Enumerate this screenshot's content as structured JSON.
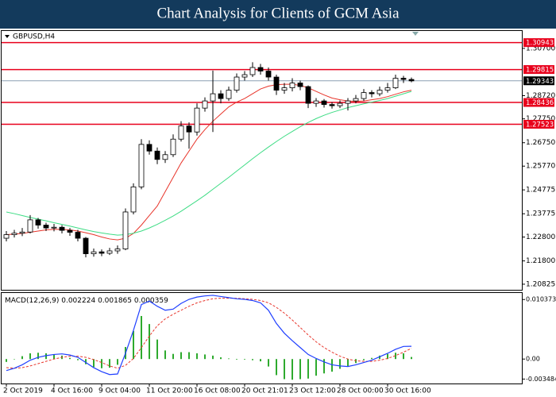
{
  "chart_data": {
    "type": "candlestick",
    "title": "Chart Analysis for Clients of GCM Asia",
    "symbol": "GBPUSD,H4",
    "categories": [
      "2 Oct 2019",
      null,
      null,
      null,
      null,
      null,
      "4 Oct 16:00",
      null,
      null,
      null,
      null,
      null,
      "9 Oct 04:00",
      null,
      null,
      null,
      null,
      null,
      "11 Oct 20:00",
      null,
      null,
      null,
      null,
      null,
      "16 Oct 08:00",
      null,
      null,
      null,
      null,
      null,
      "20 Oct 21:01",
      null,
      null,
      null,
      null,
      null,
      "23 Oct 12:00",
      null,
      null,
      null,
      null,
      null,
      "28 Oct 00:00",
      null,
      null,
      null,
      null,
      null,
      "30 Oct 16:00",
      null,
      null,
      null
    ],
    "open": [
      1.2275,
      1.229,
      1.2296,
      1.2301,
      1.2352,
      1.233,
      1.2318,
      1.2321,
      1.2308,
      1.23,
      1.2275,
      1.221,
      1.2218,
      1.2212,
      1.2222,
      1.223,
      1.2385,
      1.249,
      1.2668,
      1.264,
      1.2605,
      1.2625,
      1.269,
      1.2745,
      1.272,
      1.282,
      1.285,
      1.288,
      1.286,
      1.2895,
      1.295,
      1.296,
      1.299,
      1.2975,
      1.295,
      1.2895,
      1.2905,
      1.2925,
      1.291,
      1.284,
      1.285,
      1.2835,
      1.283,
      1.284,
      1.285,
      1.286,
      1.2885,
      1.288,
      1.2895,
      1.2905,
      1.2945,
      1.294
    ],
    "high": [
      1.2305,
      1.231,
      1.2318,
      1.2372,
      1.236,
      1.234,
      1.2335,
      1.233,
      1.2318,
      1.231,
      1.228,
      1.2232,
      1.2228,
      1.2235,
      1.2245,
      1.24,
      1.2505,
      1.269,
      1.2685,
      1.2655,
      1.264,
      1.271,
      1.2765,
      1.276,
      1.284,
      1.2865,
      1.2977,
      1.2895,
      1.291,
      1.2965,
      1.2975,
      1.3012,
      1.3005,
      1.299,
      1.296,
      1.2925,
      1.2945,
      1.2935,
      1.2915,
      1.2862,
      1.2858,
      1.2845,
      1.2852,
      1.2862,
      1.2875,
      1.29,
      1.2895,
      1.291,
      1.2925,
      1.296,
      1.2955,
      1.2948
    ],
    "low": [
      1.2262,
      1.2278,
      1.2284,
      1.2295,
      1.2315,
      1.2305,
      1.2304,
      1.2295,
      1.2285,
      1.2262,
      1.2195,
      1.2198,
      1.22,
      1.2205,
      1.221,
      1.2225,
      1.2375,
      1.248,
      1.2625,
      1.2585,
      1.259,
      1.2615,
      1.268,
      1.265,
      1.2705,
      1.2805,
      1.272,
      1.284,
      1.285,
      1.2885,
      1.2935,
      1.295,
      1.296,
      1.2935,
      1.2875,
      1.288,
      1.289,
      1.2895,
      1.282,
      1.2825,
      1.2822,
      1.2818,
      1.282,
      1.281,
      1.284,
      1.285,
      1.2865,
      1.287,
      1.2885,
      1.29,
      1.2925,
      1.2928
    ],
    "close": [
      1.229,
      1.2296,
      1.2301,
      1.2352,
      1.233,
      1.2318,
      1.2321,
      1.2308,
      1.23,
      1.2275,
      1.221,
      1.2218,
      1.2212,
      1.2222,
      1.223,
      1.2385,
      1.249,
      1.2668,
      1.264,
      1.2605,
      1.2625,
      1.269,
      1.2745,
      1.272,
      1.282,
      1.285,
      1.288,
      1.286,
      1.2895,
      1.295,
      1.296,
      1.299,
      1.2975,
      1.295,
      1.2895,
      1.2905,
      1.2925,
      1.291,
      1.284,
      1.285,
      1.2835,
      1.283,
      1.284,
      1.285,
      1.286,
      1.2885,
      1.288,
      1.2895,
      1.2905,
      1.2945,
      1.294,
      1.2934
    ],
    "up_color": "#ffffff",
    "down_color": "#000000",
    "overlays": [
      {
        "color": "#e8352b",
        "values": [
          1.229,
          1.2292,
          1.2295,
          1.23,
          1.2305,
          1.231,
          1.2312,
          1.2312,
          1.231,
          1.2305,
          1.2298,
          1.229,
          1.228,
          1.2272,
          1.2268,
          1.2275,
          1.2295,
          1.233,
          1.237,
          1.241,
          1.247,
          1.253,
          1.259,
          1.264,
          1.269,
          1.273,
          1.2765,
          1.2795,
          1.2825,
          1.2845,
          1.286,
          1.288,
          1.29,
          1.2912,
          1.2918,
          1.292,
          1.292,
          1.2915,
          1.2905,
          1.289,
          1.2875,
          1.2862,
          1.2855,
          1.285,
          1.2848,
          1.285,
          1.2855,
          1.286,
          1.2868,
          1.2878,
          1.2888,
          1.2895
        ]
      },
      {
        "color": "#3ddc84",
        "values": [
          1.2385,
          1.2378,
          1.237,
          1.2362,
          1.2355,
          1.2348,
          1.234,
          1.2333,
          1.2326,
          1.2318,
          1.231,
          1.2303,
          1.2297,
          1.2292,
          1.2288,
          1.229,
          1.2296,
          1.2305,
          1.2318,
          1.2333,
          1.235,
          1.2368,
          1.2388,
          1.241,
          1.2432,
          1.2455,
          1.248,
          1.2505,
          1.253,
          1.2556,
          1.2582,
          1.2608,
          1.2633,
          1.2657,
          1.268,
          1.2702,
          1.2722,
          1.2742,
          1.276,
          1.2776,
          1.279,
          1.2802,
          1.2812,
          1.2822,
          1.283,
          1.2838,
          1.2845,
          1.2852,
          1.286,
          1.287,
          1.288,
          1.289
        ]
      }
    ],
    "levels": [
      {
        "value": 1.30943,
        "color": "#e8001c"
      },
      {
        "value": 1.29815,
        "color": "#e8001c"
      },
      {
        "value": 1.28436,
        "color": "#e8001c"
      },
      {
        "value": 1.27523,
        "color": "#e8001c"
      }
    ],
    "current_price": 1.29343,
    "ylim": [
      1.2059,
      1.3143
    ],
    "yticks": [
      {
        "value": 1.307,
        "label": "1.30700"
      },
      {
        "value": 1.2872,
        "label": "1.28720"
      },
      {
        "value": 1.2775,
        "label": "1.27750"
      },
      {
        "value": 1.2675,
        "label": "1.26750"
      },
      {
        "value": 1.2577,
        "label": "1.25770"
      },
      1.24775,
      1.23775,
      {
        "value": 1.228,
        "label": "1.22800"
      },
      {
        "value": 1.218,
        "label": "1.21800"
      },
      1.20825
    ],
    "macd": {
      "label": "MACD(12,26,9)",
      "main_color": "#1f3fff",
      "signal_color": "#e8352b",
      "histogram_color": "#2eaa2e",
      "main": [
        -0.002,
        -0.0016,
        -0.001,
        -0.0002,
        0.0003,
        0.0006,
        0.0008,
        0.0009,
        0.0007,
        0.0003,
        -0.0006,
        -0.0015,
        -0.0022,
        -0.0027,
        -0.0026,
        0.001,
        0.005,
        0.0095,
        0.0101,
        0.0092,
        0.0085,
        0.0087,
        0.0097,
        0.0104,
        0.0108,
        0.011,
        0.0111,
        0.0109,
        0.0107,
        0.0105,
        0.0104,
        0.0102,
        0.0098,
        0.0085,
        0.0062,
        0.0045,
        0.0032,
        0.002,
        0.0008,
        0.0001,
        -0.0005,
        -0.001,
        -0.0012,
        -0.0013,
        -0.001,
        -0.0006,
        -0.0002,
        0.0004,
        0.001,
        0.0017,
        0.0022,
        0.002224
      ],
      "signal": [
        -0.0015,
        -0.0016,
        -0.0015,
        -0.0012,
        -0.0008,
        -0.0004,
        0.0,
        0.0003,
        0.0005,
        0.0005,
        0.0003,
        -0.0001,
        -0.0006,
        -0.0012,
        -0.0016,
        -0.0011,
        0.0001,
        0.002,
        0.004,
        0.0058,
        0.007,
        0.0078,
        0.0085,
        0.0092,
        0.0098,
        0.0102,
        0.0105,
        0.0106,
        0.0106,
        0.0106,
        0.0105,
        0.0104,
        0.0102,
        0.0098,
        0.009,
        0.008,
        0.0068,
        0.0055,
        0.0042,
        0.003,
        0.002,
        0.0012,
        0.0005,
        0.0,
        -0.0003,
        -0.0004,
        -0.0004,
        -0.0002,
        0.0001,
        0.0006,
        0.0012,
        0.001865
      ],
      "histogram": [
        -0.0005,
        0.0,
        0.0005,
        0.001,
        0.0011,
        0.001,
        0.0008,
        0.0006,
        0.0002,
        -0.0002,
        -0.0009,
        -0.0014,
        -0.0016,
        -0.0015,
        -0.001,
        0.0021,
        0.0049,
        0.0075,
        0.0061,
        0.0034,
        0.0015,
        0.0009,
        0.0012,
        0.0012,
        0.001,
        0.0008,
        0.0006,
        0.0003,
        0.0001,
        -0.0001,
        -0.0001,
        -0.0002,
        -0.0004,
        -0.0013,
        -0.0028,
        -0.0035,
        -0.0036,
        -0.0035,
        -0.0034,
        -0.0029,
        -0.0025,
        -0.0022,
        -0.0017,
        -0.0013,
        -0.0007,
        -0.0002,
        0.0002,
        0.0006,
        0.0009,
        0.0011,
        0.001,
        0.000359
      ],
      "ylim": [
        -0.00426,
        0.01151
      ],
      "yticks": [
        0.010373,
        {
          "value": 0,
          "label": "0.00"
        },
        -0.003484
      ]
    }
  }
}
